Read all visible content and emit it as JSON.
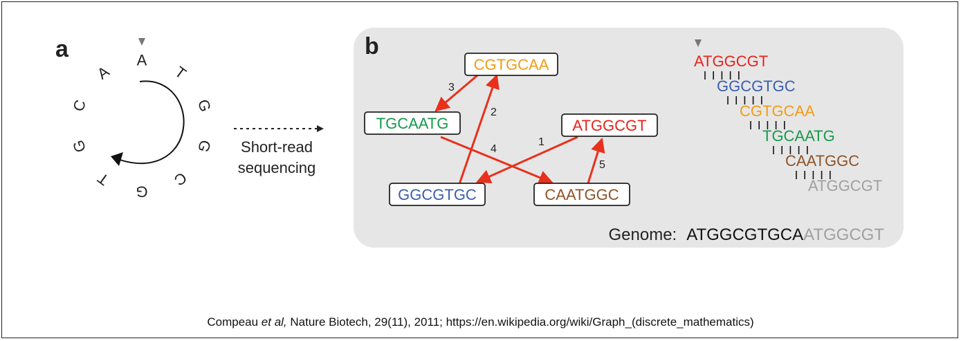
{
  "panel_a": {
    "label": "a",
    "circle_letters": [
      "A",
      "T",
      "G",
      "G",
      "C",
      "G",
      "T",
      "G",
      "C",
      "A"
    ],
    "arrow_label_line1": "Short-read",
    "arrow_label_line2": "sequencing"
  },
  "panel_b": {
    "label": "b",
    "nodes": [
      {
        "id": "cgtgcaa",
        "text": "CGTGCAA",
        "color": "#f39c12"
      },
      {
        "id": "tgcaatg",
        "text": "TGCAATG",
        "color": "#16994a"
      },
      {
        "id": "atggcgt",
        "text": "ATGGCGT",
        "color": "#e8231c"
      },
      {
        "id": "ggcgtgc",
        "text": "GGCGTGC",
        "color": "#3a5db0"
      },
      {
        "id": "caatggc",
        "text": "CAATGGC",
        "color": "#8e5227"
      }
    ],
    "edge_labels": [
      "1",
      "2",
      "3",
      "4",
      "5"
    ],
    "edge_color": "#e8301c",
    "alignment": [
      {
        "text": "ATGGCGT",
        "color": "#e8231c"
      },
      {
        "text": "GGCGTGC",
        "color": "#3a5db0"
      },
      {
        "text": "CGTGCAA",
        "color": "#f39c12"
      },
      {
        "text": "TGCAATG",
        "color": "#16994a"
      },
      {
        "text": "CAATGGC",
        "color": "#8e5227"
      },
      {
        "text": "ATGGCGT",
        "color": "#a0a0a0"
      }
    ],
    "genome_label": "Genome:",
    "genome_main": "ATGGCGTGCA",
    "genome_repeat": "ATGGCGT"
  },
  "caption": {
    "author": "Compeau ",
    "etal": "et al,",
    "rest": " Nature Biotech, 29(11), 2011; https://en.wikipedia.org/wiki/Graph_(discrete_mathematics)"
  }
}
